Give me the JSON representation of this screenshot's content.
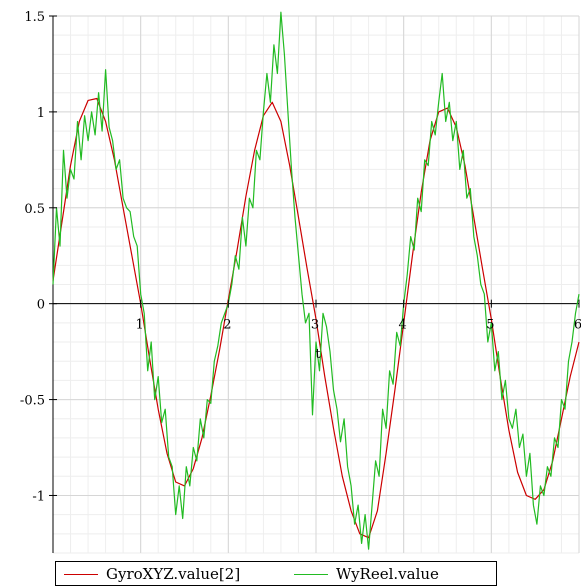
{
  "chart_data": {
    "type": "line",
    "xlabel": "t",
    "ylabel": "",
    "xlim": [
      0,
      6
    ],
    "ylim": [
      -1.3,
      1.5
    ],
    "xticks": [
      1,
      2,
      3,
      4,
      5,
      6
    ],
    "yticks": [
      -1,
      -0.5,
      0,
      0.5,
      1,
      1.5
    ],
    "xtick_labels": [
      "1",
      "2",
      "3",
      "4",
      "5",
      "6"
    ],
    "ytick_labels": [
      "-1",
      "-0.5",
      "0",
      "0.5",
      "1",
      "1.5"
    ],
    "grid": true,
    "legend_position": "bottom",
    "series": [
      {
        "name": "GyroXYZ.value[2]",
        "color": "#cc0000",
        "x": [
          0,
          0.1,
          0.2,
          0.3,
          0.4,
          0.5,
          0.6,
          0.7,
          0.8,
          0.9,
          1.0,
          1.1,
          1.2,
          1.3,
          1.4,
          1.5,
          1.6,
          1.7,
          1.8,
          1.9,
          2.0,
          2.1,
          2.2,
          2.3,
          2.4,
          2.5,
          2.6,
          2.7,
          2.8,
          2.9,
          3.0,
          3.1,
          3.2,
          3.3,
          3.4,
          3.5,
          3.6,
          3.7,
          3.8,
          3.9,
          4.0,
          4.1,
          4.2,
          4.3,
          4.4,
          4.5,
          4.6,
          4.7,
          4.8,
          4.9,
          5.0,
          5.1,
          5.2,
          5.3,
          5.4,
          5.5,
          5.6,
          5.7,
          5.8,
          5.9,
          6.0
        ],
        "y": [
          0.12,
          0.42,
          0.72,
          0.95,
          1.06,
          1.07,
          0.95,
          0.75,
          0.5,
          0.25,
          0.0,
          -0.28,
          -0.55,
          -0.78,
          -0.93,
          -0.95,
          -0.86,
          -0.7,
          -0.48,
          -0.24,
          0.02,
          0.28,
          0.56,
          0.8,
          0.98,
          1.05,
          0.95,
          0.72,
          0.45,
          0.18,
          -0.08,
          -0.38,
          -0.65,
          -0.9,
          -1.08,
          -1.2,
          -1.22,
          -1.08,
          -0.78,
          -0.45,
          -0.1,
          0.25,
          0.58,
          0.85,
          1.0,
          1.02,
          0.92,
          0.72,
          0.45,
          0.18,
          -0.08,
          -0.38,
          -0.66,
          -0.88,
          -1.0,
          -1.02,
          -0.97,
          -0.82,
          -0.6,
          -0.38,
          -0.2
        ]
      },
      {
        "name": "WyReel.value",
        "color": "#22bb22",
        "x": [
          0,
          0.04,
          0.08,
          0.12,
          0.16,
          0.2,
          0.24,
          0.28,
          0.32,
          0.36,
          0.4,
          0.44,
          0.48,
          0.52,
          0.56,
          0.6,
          0.64,
          0.68,
          0.72,
          0.76,
          0.8,
          0.84,
          0.88,
          0.92,
          0.96,
          1.0,
          1.04,
          1.08,
          1.12,
          1.16,
          1.2,
          1.24,
          1.28,
          1.32,
          1.36,
          1.4,
          1.44,
          1.48,
          1.52,
          1.56,
          1.6,
          1.64,
          1.68,
          1.72,
          1.76,
          1.8,
          1.84,
          1.88,
          1.92,
          1.96,
          2.0,
          2.04,
          2.08,
          2.12,
          2.16,
          2.2,
          2.24,
          2.28,
          2.32,
          2.36,
          2.4,
          2.44,
          2.48,
          2.52,
          2.56,
          2.6,
          2.64,
          2.68,
          2.72,
          2.76,
          2.8,
          2.84,
          2.88,
          2.92,
          2.96,
          3.0,
          3.04,
          3.08,
          3.12,
          3.16,
          3.2,
          3.24,
          3.28,
          3.32,
          3.36,
          3.4,
          3.44,
          3.48,
          3.52,
          3.56,
          3.6,
          3.64,
          3.68,
          3.72,
          3.76,
          3.8,
          3.84,
          3.88,
          3.92,
          3.96,
          4.0,
          4.04,
          4.08,
          4.12,
          4.16,
          4.2,
          4.24,
          4.28,
          4.32,
          4.36,
          4.4,
          4.44,
          4.48,
          4.52,
          4.56,
          4.6,
          4.64,
          4.68,
          4.72,
          4.76,
          4.8,
          4.84,
          4.88,
          4.92,
          4.96,
          5.0,
          5.04,
          5.08,
          5.12,
          5.16,
          5.2,
          5.24,
          5.28,
          5.32,
          5.36,
          5.4,
          5.44,
          5.48,
          5.52,
          5.56,
          5.6,
          5.64,
          5.68,
          5.72,
          5.76,
          5.8,
          5.84,
          5.88,
          5.92,
          5.96,
          6.0
        ],
        "y": [
          0.1,
          0.5,
          0.3,
          0.8,
          0.55,
          0.7,
          0.65,
          0.95,
          0.75,
          0.98,
          0.85,
          1.0,
          0.88,
          1.1,
          0.9,
          1.22,
          0.92,
          0.85,
          0.7,
          0.75,
          0.55,
          0.5,
          0.48,
          0.35,
          0.3,
          0.05,
          -0.05,
          -0.35,
          -0.2,
          -0.5,
          -0.38,
          -0.62,
          -0.55,
          -0.8,
          -0.85,
          -1.1,
          -0.95,
          -1.12,
          -0.85,
          -0.95,
          -0.75,
          -0.82,
          -0.6,
          -0.7,
          -0.5,
          -0.52,
          -0.3,
          -0.22,
          -0.1,
          -0.05,
          0.0,
          0.1,
          0.25,
          0.18,
          0.45,
          0.3,
          0.55,
          0.5,
          0.8,
          0.75,
          1.0,
          1.2,
          1.05,
          1.35,
          1.2,
          1.52,
          1.3,
          1.0,
          0.7,
          0.45,
          0.25,
          0.05,
          -0.1,
          -0.05,
          -0.58,
          -0.2,
          -0.35,
          -0.05,
          -0.12,
          -0.25,
          -0.45,
          -0.55,
          -0.72,
          -0.6,
          -0.85,
          -0.95,
          -1.15,
          -1.05,
          -1.25,
          -1.1,
          -1.28,
          -1.05,
          -0.82,
          -0.9,
          -0.55,
          -0.65,
          -0.35,
          -0.42,
          -0.15,
          -0.22,
          0.0,
          0.15,
          0.35,
          0.28,
          0.55,
          0.48,
          0.75,
          0.72,
          0.95,
          0.88,
          1.05,
          1.2,
          0.95,
          1.05,
          0.85,
          0.95,
          0.7,
          0.8,
          0.55,
          0.6,
          0.35,
          0.25,
          0.1,
          0.05,
          -0.2,
          -0.1,
          -0.35,
          -0.25,
          -0.5,
          -0.4,
          -0.6,
          -0.65,
          -0.55,
          -0.75,
          -0.68,
          -0.9,
          -0.78,
          -1.05,
          -1.15,
          -0.95,
          -1.0,
          -0.85,
          -0.9,
          -0.7,
          -0.75,
          -0.5,
          -0.55,
          -0.3,
          -0.2,
          -0.05,
          0.05
        ]
      }
    ]
  }
}
